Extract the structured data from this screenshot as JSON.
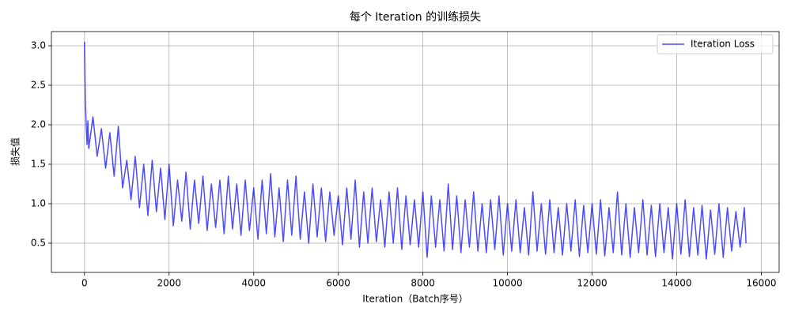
{
  "chart_data": {
    "type": "line",
    "title": "每个 Iteration 的训练损失",
    "xlabel": "Iteration（Batch序号）",
    "ylabel": "损失值",
    "x": [
      0,
      20,
      40,
      60,
      80,
      100,
      200,
      300,
      400,
      500,
      600,
      700,
      800,
      900,
      1000,
      1100,
      1200,
      1300,
      1400,
      1500,
      1600,
      1700,
      1800,
      1900,
      2000,
      2100,
      2200,
      2300,
      2400,
      2500,
      2600,
      2700,
      2800,
      2900,
      3000,
      3100,
      3200,
      3300,
      3400,
      3500,
      3600,
      3700,
      3800,
      3900,
      4000,
      4100,
      4200,
      4300,
      4400,
      4500,
      4600,
      4700,
      4800,
      4900,
      5000,
      5100,
      5200,
      5300,
      5400,
      5500,
      5600,
      5700,
      5800,
      5900,
      6000,
      6100,
      6200,
      6300,
      6400,
      6500,
      6600,
      6700,
      6800,
      6900,
      7000,
      7100,
      7200,
      7300,
      7400,
      7500,
      7600,
      7700,
      7800,
      7900,
      8000,
      8100,
      8200,
      8300,
      8400,
      8500,
      8600,
      8700,
      8800,
      8900,
      9000,
      9100,
      9200,
      9300,
      9400,
      9500,
      9600,
      9700,
      9800,
      9900,
      10000,
      10100,
      10200,
      10300,
      10400,
      10500,
      10600,
      10700,
      10800,
      10900,
      11000,
      11100,
      11200,
      11300,
      11400,
      11500,
      11600,
      11700,
      11800,
      11900,
      12000,
      12100,
      12200,
      12300,
      12400,
      12500,
      12600,
      12700,
      12800,
      12900,
      13000,
      13100,
      13200,
      13300,
      13400,
      13500,
      13600,
      13700,
      13800,
      13900,
      14000,
      14100,
      14200,
      14300,
      14400,
      14500,
      14600,
      14700,
      14800,
      14900,
      15000,
      15100,
      15200,
      15300,
      15400,
      15500,
      15600,
      15640
    ],
    "series": [
      {
        "name": "Iteration Loss",
        "color": "#0000ff",
        "alpha": 0.7,
        "values": [
          3.05,
          2.3,
          2.0,
          1.75,
          2.05,
          1.7,
          2.1,
          1.6,
          1.95,
          1.45,
          1.9,
          1.35,
          1.98,
          1.2,
          1.55,
          1.05,
          1.6,
          0.95,
          1.5,
          0.85,
          1.55,
          0.9,
          1.45,
          0.8,
          1.5,
          0.72,
          1.3,
          0.78,
          1.4,
          0.68,
          1.3,
          0.75,
          1.35,
          0.66,
          1.25,
          0.7,
          1.3,
          0.62,
          1.35,
          0.68,
          1.25,
          0.6,
          1.3,
          0.66,
          1.2,
          0.55,
          1.3,
          0.62,
          1.38,
          0.58,
          1.2,
          0.52,
          1.3,
          0.6,
          1.35,
          0.55,
          1.15,
          0.5,
          1.25,
          0.58,
          1.2,
          0.52,
          1.15,
          0.6,
          1.1,
          0.48,
          1.2,
          0.55,
          1.3,
          0.45,
          1.15,
          0.5,
          1.2,
          0.52,
          1.05,
          0.45,
          1.15,
          0.5,
          1.2,
          0.42,
          1.1,
          0.48,
          1.05,
          0.45,
          1.15,
          0.32,
          1.1,
          0.45,
          1.05,
          0.4,
          1.25,
          0.42,
          1.1,
          0.38,
          1.05,
          0.45,
          1.15,
          0.4,
          1.0,
          0.38,
          1.05,
          0.42,
          1.1,
          0.35,
          1.0,
          0.4,
          1.05,
          0.38,
          0.95,
          0.35,
          1.15,
          0.4,
          1.0,
          0.36,
          1.05,
          0.38,
          0.95,
          0.35,
          1.0,
          0.4,
          1.05,
          0.33,
          0.98,
          0.38,
          1.0,
          0.36,
          1.05,
          0.34,
          0.95,
          0.38,
          1.15,
          0.35,
          1.0,
          0.32,
          0.95,
          0.38,
          1.05,
          0.35,
          0.98,
          0.33,
          1.0,
          0.38,
          0.95,
          0.3,
          1.0,
          0.36,
          1.05,
          0.33,
          0.95,
          0.35,
          0.98,
          0.3,
          0.92,
          0.36,
          1.0,
          0.32,
          0.95,
          0.4,
          0.9,
          0.45,
          0.95,
          0.5
        ]
      }
    ],
    "xlim": [
      -782,
      16422
    ],
    "ylim": [
      0.13,
      3.18
    ],
    "xticks": [
      0,
      2000,
      4000,
      6000,
      8000,
      10000,
      12000,
      14000,
      16000
    ],
    "yticks": [
      0.5,
      {
        "value": 1,
        "label": "1.0"
      },
      1.5,
      {
        "value": 2,
        "label": "2.0"
      },
      2.5,
      {
        "value": 3,
        "label": "3.0"
      }
    ],
    "grid": true,
    "legend": "upper right"
  }
}
